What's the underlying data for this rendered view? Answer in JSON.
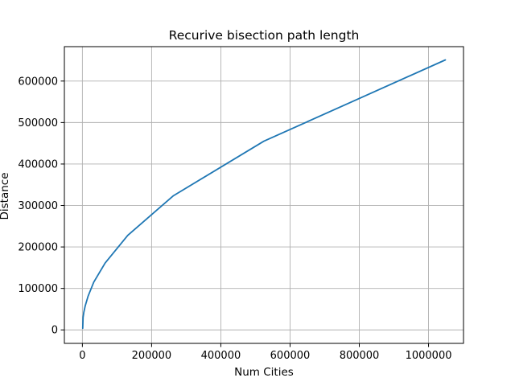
{
  "chart_data": {
    "type": "line",
    "title": "Recurive bisection path length",
    "xlabel": "Num Cities",
    "ylabel": "Distance",
    "xlim": [
      -52000,
      1101000
    ],
    "ylim": [
      -32500,
      683000
    ],
    "grid": true,
    "x_ticks": [
      0,
      200000,
      400000,
      600000,
      800000,
      1000000
    ],
    "x_tick_labels": [
      "0",
      "200000",
      "400000",
      "600000",
      "800000",
      "1000000"
    ],
    "y_ticks": [
      0,
      100000,
      200000,
      300000,
      400000,
      500000,
      600000
    ],
    "y_tick_labels": [
      "0",
      "100000",
      "200000",
      "300000",
      "400000",
      "500000",
      "600000"
    ],
    "series": [
      {
        "color": "#1f77b4",
        "x": [
          1024,
          2048,
          4096,
          8192,
          16384,
          32768,
          65536,
          131072,
          262144,
          524288,
          1048576
        ],
        "y": [
          4000,
          30000,
          42000,
          58000,
          81000,
          115000,
          161000,
          228000,
          323000,
          455000,
          651000
        ]
      }
    ]
  }
}
